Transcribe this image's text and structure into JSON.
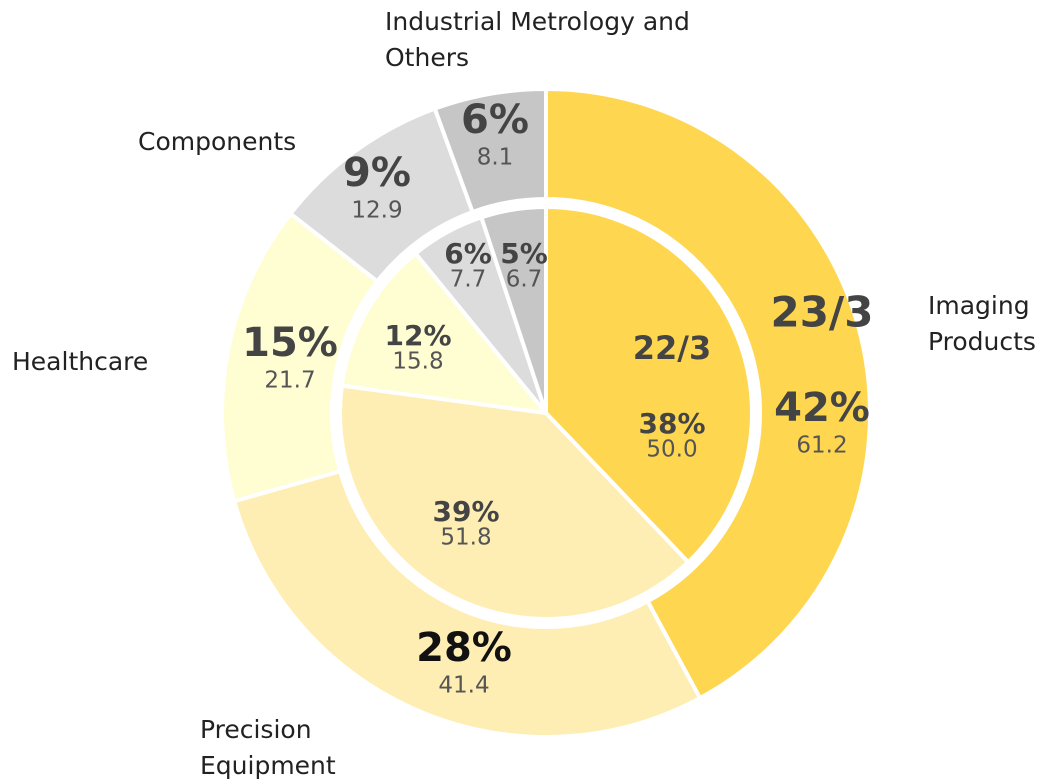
{
  "chart_data": [
    {
      "type": "donut",
      "title": "23/3",
      "categories": [
        "Imaging Products",
        "Precision Equipment",
        "Healthcare",
        "Components",
        "Industrial Metrology and Others"
      ],
      "values": [
        61.2,
        41.4,
        21.7,
        12.9,
        8.1
      ],
      "percentages": [
        42,
        28,
        15,
        9,
        6
      ],
      "percentage_labels": [
        "42%",
        "28%",
        "15%",
        "9%",
        "6%"
      ],
      "colors": [
        "#fed650",
        "#feeeb4",
        "#fffdd2",
        "#dcdcdc",
        "#c6c6c6"
      ]
    },
    {
      "type": "pie",
      "title": "22/3",
      "values": [
        50.0,
        51.8,
        15.8,
        7.7,
        6.7
      ],
      "value_labels": [
        "50.0",
        "51.8",
        "15.8",
        "7.7",
        "6.7"
      ],
      "percentages": [
        38,
        39,
        12,
        6,
        5
      ],
      "percentage_labels": [
        "38%",
        "39%",
        "12%",
        "6%",
        "5%"
      ],
      "colors": [
        "#fed650",
        "#feeeb4",
        "#fffdd2",
        "#dcdcdc",
        "#c6c6c6"
      ]
    }
  ]
}
